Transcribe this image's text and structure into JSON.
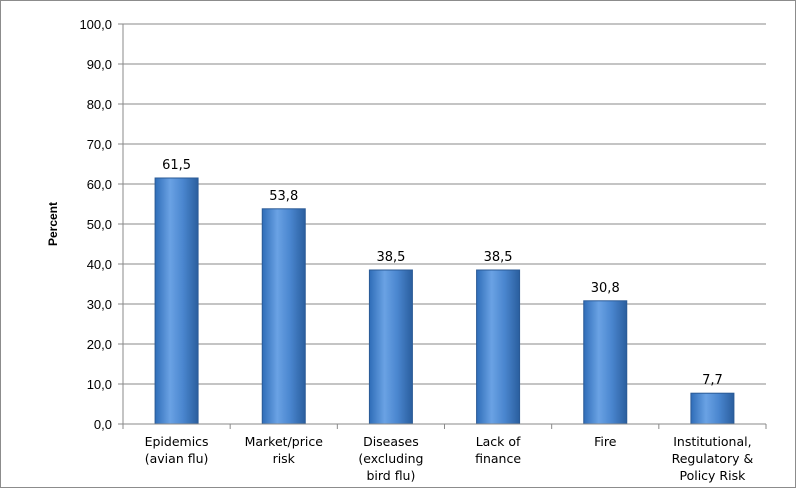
{
  "chart_data": {
    "type": "bar",
    "title": "",
    "xlabel": "",
    "ylabel": "Percent",
    "ylim": [
      0,
      100
    ],
    "yticks": [
      "0,0",
      "10,0",
      "20,0",
      "30,0",
      "40,0",
      "50,0",
      "60,0",
      "70,0",
      "80,0",
      "90,0",
      "100,0"
    ],
    "ytick_values": [
      0,
      10,
      20,
      30,
      40,
      50,
      60,
      70,
      80,
      90,
      100
    ],
    "grid": true,
    "legend": "none",
    "bar_color": "#4a86cf",
    "categories": [
      [
        "Epidemics",
        "(avian flu)"
      ],
      [
        "Market/price",
        "risk"
      ],
      [
        "Diseases",
        "(excluding",
        "bird flu)"
      ],
      [
        "Lack of",
        "finance"
      ],
      [
        "Fire"
      ],
      [
        "Institutional,",
        "Regulatory &",
        "Policy Risk"
      ]
    ],
    "values": [
      61.5,
      53.8,
      38.5,
      38.5,
      30.8,
      7.7
    ],
    "data_labels": [
      "61,5",
      "53,8",
      "38,5",
      "38,5",
      "30,8",
      "7,7"
    ]
  }
}
